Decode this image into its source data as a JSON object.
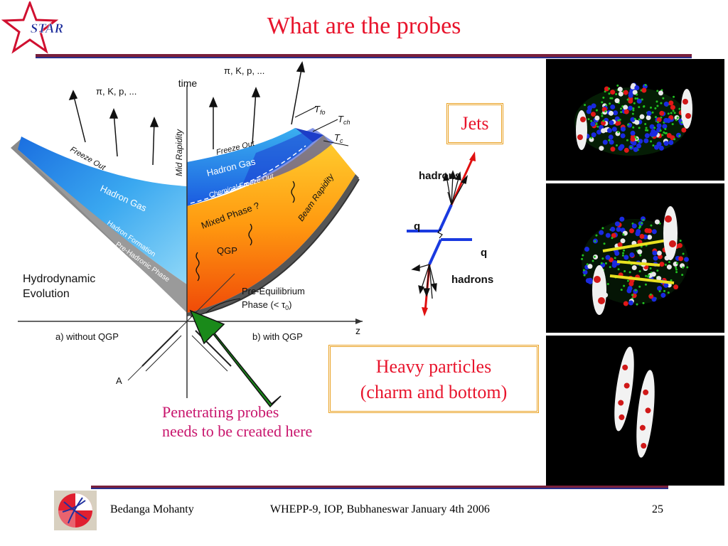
{
  "slide": {
    "title": "What are the probes",
    "logo_text": "STAR"
  },
  "diagram": {
    "time_label": "time",
    "z_label": "z",
    "mid_rapidity": "Mid Rapidity",
    "beam_rapidity": "Beam Rapidity",
    "particles_left": "π, K, p, ...",
    "particles_right": "π, K, p, ...",
    "t_fo": "T",
    "t_fo_sub": "fo",
    "t_ch": "T",
    "t_ch_sub": "ch",
    "t_c": "T",
    "t_c_sub": "c",
    "freeze_out_left": "Freeze Out",
    "freeze_out_right": "Freeze Out",
    "hadron_gas_left": "Hadron Gas",
    "hadron_gas_right": "Hadron Gas",
    "chemical_freeze_out": "Chemical Freeze Out",
    "mixed_phase": "Mixed Phase ?",
    "qgp": "QGP",
    "hadron_formation": "Hadron Formation",
    "pre_hadronic": "Pre-Hadronic Phase",
    "hydro_line1": "Hydrodynamic",
    "hydro_line2": "Evolution",
    "pre_eq_line1": "Pre-Equilibrium",
    "pre_eq_line2": "Phase (< τ",
    "pre_eq_sub": "0",
    "pre_eq_close": ")",
    "without_qgp": "a) without QGP",
    "with_qgp": "b) with QGP",
    "a_label": "A"
  },
  "penetrating": {
    "line1": "Penetrating probes",
    "line2": "needs to be created here"
  },
  "jets": {
    "box_label": "Jets",
    "hadrons_top": "hadrons",
    "hadrons_bottom": "hadrons",
    "q_left": "q",
    "q_right": "q"
  },
  "heavy": {
    "line1": "Heavy particles",
    "line2": "(charm and bottom)"
  },
  "footer": {
    "author": "Bedanga Mohanty",
    "event": "WHEPP-9, IOP, Bubhaneswar January 4th 2006",
    "page": "25"
  },
  "colors": {
    "title": "#e8142c",
    "accent_pink": "#c8146c",
    "arrow_green": "#1a8a1a",
    "box_border": "#e9a020"
  }
}
